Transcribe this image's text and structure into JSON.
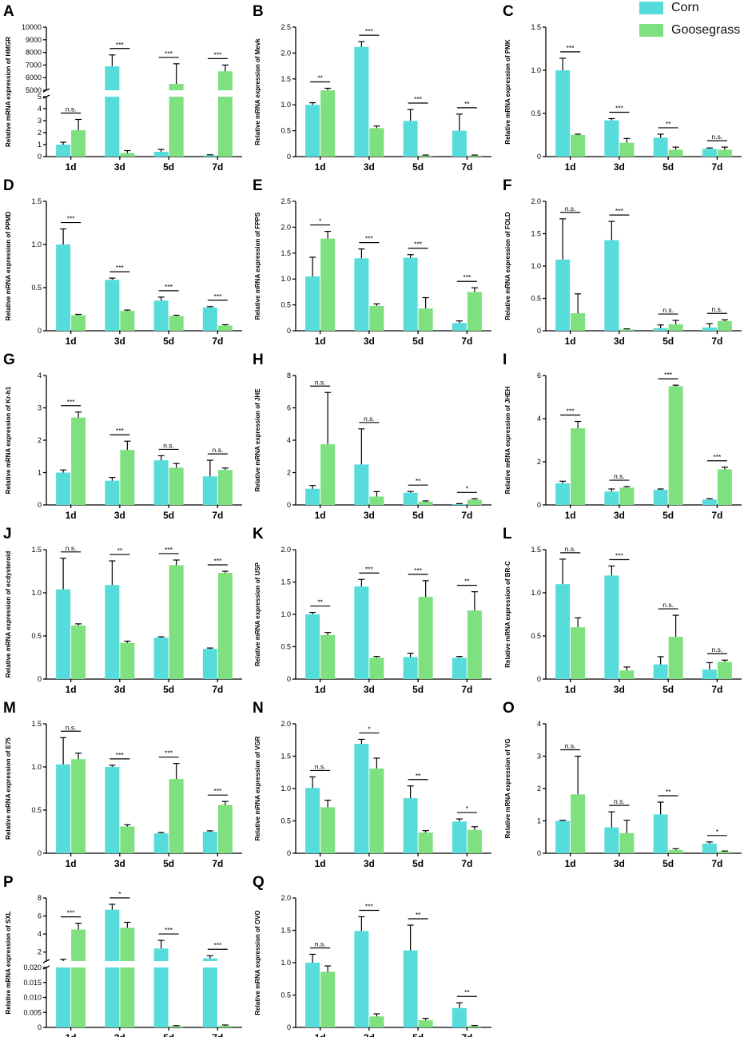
{
  "legend": {
    "corn_label": "Corn",
    "goosegrass_label": "Goosegrass",
    "corn_color": "#57dcdc",
    "goosegrass_color": "#7ee07e"
  },
  "chart_data": [
    {
      "panel": "A",
      "type": "bar",
      "ylabel": "Relative mRNA expression of HMGR",
      "categories": [
        "1d",
        "3d",
        "5d",
        "7d"
      ],
      "broken_axis": true,
      "lower_ticks": [
        "0",
        "1",
        "2",
        "3",
        "4",
        "5"
      ],
      "upper_ticks": [
        "5000",
        "6000",
        "7000",
        "8000",
        "9000",
        "10000"
      ],
      "lower_range": [
        0,
        5
      ],
      "upper_range": [
        5000,
        10000
      ],
      "series": [
        {
          "name": "Corn",
          "values": [
            1.0,
            6900,
            0.4,
            0.1
          ],
          "errors": [
            0.2,
            900,
            0.2,
            0.05
          ]
        },
        {
          "name": "Goosegrass",
          "values": [
            2.2,
            0.3,
            5500,
            6500
          ],
          "errors": [
            0.9,
            0.2,
            1600,
            500
          ]
        }
      ],
      "significance": [
        "n.s.",
        "***",
        "***",
        "***"
      ]
    },
    {
      "panel": "B",
      "type": "bar",
      "ylabel": "Relative mRNA expression of Mevk",
      "categories": [
        "1d",
        "3d",
        "5d",
        "7d"
      ],
      "ylim": [
        0,
        2.5
      ],
      "ticks": [
        "0",
        "0.5",
        "1.0",
        "1.5",
        "2.0",
        "2.5"
      ],
      "series": [
        {
          "name": "Corn",
          "values": [
            1.0,
            2.12,
            0.69,
            0.5
          ],
          "errors": [
            0.04,
            0.1,
            0.22,
            0.32
          ]
        },
        {
          "name": "Goosegrass",
          "values": [
            1.28,
            0.55,
            0.02,
            0.02
          ],
          "errors": [
            0.04,
            0.04,
            0.01,
            0.01
          ]
        }
      ],
      "significance": [
        "**",
        "***",
        "***",
        "**"
      ]
    },
    {
      "panel": "C",
      "type": "bar",
      "ylabel": "Relative mRNA expression of PMK",
      "categories": [
        "1d",
        "3d",
        "5d",
        "7d"
      ],
      "ylim": [
        0,
        1.5
      ],
      "ticks": [
        "0",
        "0.5",
        "1.0",
        "1.5"
      ],
      "series": [
        {
          "name": "Corn",
          "values": [
            1.0,
            0.42,
            0.22,
            0.09
          ],
          "errors": [
            0.14,
            0.02,
            0.04,
            0.01
          ]
        },
        {
          "name": "Goosegrass",
          "values": [
            0.25,
            0.16,
            0.08,
            0.08
          ],
          "errors": [
            0.01,
            0.05,
            0.03,
            0.03
          ]
        }
      ],
      "significance": [
        "***",
        "***",
        "**",
        "n.s."
      ]
    },
    {
      "panel": "D",
      "type": "bar",
      "ylabel": "Relative mRNA expression of PPMD",
      "categories": [
        "1d",
        "3d",
        "5d",
        "7d"
      ],
      "ylim": [
        0,
        1.5
      ],
      "ticks": [
        "0",
        "0.5",
        "1.0",
        "1.5"
      ],
      "series": [
        {
          "name": "Corn",
          "values": [
            1.0,
            0.59,
            0.35,
            0.27
          ],
          "errors": [
            0.18,
            0.02,
            0.04,
            0.01
          ]
        },
        {
          "name": "Goosegrass",
          "values": [
            0.18,
            0.23,
            0.17,
            0.06
          ],
          "errors": [
            0.01,
            0.01,
            0.01,
            0.01
          ]
        }
      ],
      "significance": [
        "***",
        "***",
        "***",
        "***"
      ]
    },
    {
      "panel": "E",
      "type": "bar",
      "ylabel": "Relative mRNA expression of FPPS",
      "categories": [
        "1d",
        "3d",
        "5d",
        "7d"
      ],
      "ylim": [
        0,
        2.5
      ],
      "ticks": [
        "0",
        "0.5",
        "1.0",
        "1.5",
        "2.0",
        "2.5"
      ],
      "series": [
        {
          "name": "Corn",
          "values": [
            1.05,
            1.4,
            1.41,
            0.15
          ],
          "errors": [
            0.37,
            0.18,
            0.06,
            0.04
          ]
        },
        {
          "name": "Goosegrass",
          "values": [
            1.78,
            0.48,
            0.43,
            0.75
          ],
          "errors": [
            0.14,
            0.04,
            0.21,
            0.08
          ]
        }
      ],
      "significance": [
        "*",
        "***",
        "***",
        "***"
      ]
    },
    {
      "panel": "F",
      "type": "bar",
      "ylabel": "Relative mRNA expression of FOLD",
      "categories": [
        "1d",
        "3d",
        "5d",
        "7d"
      ],
      "ylim": [
        0,
        2.0
      ],
      "ticks": [
        "0",
        "0.5",
        "1.0",
        "1.5",
        "2.0"
      ],
      "series": [
        {
          "name": "Corn",
          "values": [
            1.1,
            1.4,
            0.04,
            0.05
          ],
          "errors": [
            0.63,
            0.29,
            0.05,
            0.06
          ]
        },
        {
          "name": "Goosegrass",
          "values": [
            0.27,
            0.02,
            0.1,
            0.15
          ],
          "errors": [
            0.3,
            0.01,
            0.06,
            0.02
          ]
        }
      ],
      "significance": [
        "n.s.",
        "***",
        "n.s.",
        "n.s."
      ]
    },
    {
      "panel": "G",
      "type": "bar",
      "ylabel": "Relative mRNA expression of Kr-h1",
      "categories": [
        "1d",
        "3d",
        "5d",
        "7d"
      ],
      "ylim": [
        0,
        4
      ],
      "ticks": [
        "0",
        "1",
        "2",
        "3",
        "4"
      ],
      "series": [
        {
          "name": "Corn",
          "values": [
            1.0,
            0.75,
            1.38,
            0.88
          ],
          "errors": [
            0.08,
            0.1,
            0.14,
            0.5
          ]
        },
        {
          "name": "Goosegrass",
          "values": [
            2.7,
            1.7,
            1.15,
            1.08
          ],
          "errors": [
            0.17,
            0.27,
            0.13,
            0.06
          ]
        }
      ],
      "significance": [
        "***",
        "***",
        "n.s.",
        "n.s."
      ]
    },
    {
      "panel": "H",
      "type": "bar",
      "ylabel": "Relative mRNA expression of JHE",
      "categories": [
        "1d",
        "3d",
        "5d",
        "7d"
      ],
      "ylim": [
        0,
        8
      ],
      "ticks": [
        "0",
        "2",
        "4",
        "6",
        "8"
      ],
      "series": [
        {
          "name": "Corn",
          "values": [
            1.0,
            2.5,
            0.75,
            0.05
          ],
          "errors": [
            0.2,
            2.2,
            0.08,
            0.03
          ]
        },
        {
          "name": "Goosegrass",
          "values": [
            3.75,
            0.52,
            0.2,
            0.32
          ],
          "errors": [
            3.2,
            0.3,
            0.05,
            0.06
          ]
        }
      ],
      "significance": [
        "n.s.",
        "n.s.",
        "**",
        "*"
      ]
    },
    {
      "panel": "I",
      "type": "bar",
      "ylabel": "Relative mRNA expression of JHEH",
      "categories": [
        "1d",
        "3d",
        "5d",
        "7d"
      ],
      "ylim": [
        0,
        6
      ],
      "ticks": [
        "0",
        "2",
        "4",
        "6"
      ],
      "series": [
        {
          "name": "Corn",
          "values": [
            1.0,
            0.62,
            0.7,
            0.25
          ],
          "errors": [
            0.1,
            0.12,
            0.04,
            0.04
          ]
        },
        {
          "name": "Goosegrass",
          "values": [
            3.55,
            0.8,
            5.5,
            1.65
          ],
          "errors": [
            0.32,
            0.05,
            0.05,
            0.1
          ]
        }
      ],
      "significance": [
        "***",
        "n.s.",
        "***",
        "***"
      ]
    },
    {
      "panel": "J",
      "type": "bar",
      "ylabel": "Relative mRNA expression of ecdysteroid",
      "categories": [
        "1d",
        "3d",
        "5d",
        "7d"
      ],
      "ylim": [
        0,
        1.5
      ],
      "ticks": [
        "0",
        "0.5",
        "1.0",
        "1.5"
      ],
      "series": [
        {
          "name": "Corn",
          "values": [
            1.04,
            1.09,
            0.48,
            0.35
          ],
          "errors": [
            0.36,
            0.28,
            0.01,
            0.01
          ]
        },
        {
          "name": "Goosegrass",
          "values": [
            0.62,
            0.42,
            1.32,
            1.23
          ],
          "errors": [
            0.02,
            0.02,
            0.06,
            0.02
          ]
        }
      ],
      "significance": [
        "n.s.",
        "**",
        "***",
        "***"
      ]
    },
    {
      "panel": "K",
      "type": "bar",
      "ylabel": "Relative mRNA expression of USP",
      "categories": [
        "1d",
        "3d",
        "5d",
        "7d"
      ],
      "ylim": [
        0,
        2.0
      ],
      "ticks": [
        "0",
        "0.5",
        "1.0",
        "1.5",
        "2.0"
      ],
      "series": [
        {
          "name": "Corn",
          "values": [
            1.0,
            1.43,
            0.34,
            0.33
          ],
          "errors": [
            0.03,
            0.11,
            0.06,
            0.02
          ]
        },
        {
          "name": "Goosegrass",
          "values": [
            0.68,
            0.33,
            1.27,
            1.06
          ],
          "errors": [
            0.04,
            0.02,
            0.25,
            0.29
          ]
        }
      ],
      "significance": [
        "**",
        "***",
        "***",
        "**"
      ]
    },
    {
      "panel": "L",
      "type": "bar",
      "ylabel": "Relative mRNA expression of BR-C",
      "categories": [
        "1d",
        "3d",
        "5d",
        "7d"
      ],
      "ylim": [
        0,
        1.5
      ],
      "ticks": [
        "0",
        "0.5",
        "1.0",
        "1.5"
      ],
      "series": [
        {
          "name": "Corn",
          "values": [
            1.1,
            1.2,
            0.17,
            0.11
          ],
          "errors": [
            0.29,
            0.11,
            0.09,
            0.08
          ]
        },
        {
          "name": "Goosegrass",
          "values": [
            0.6,
            0.1,
            0.49,
            0.2
          ],
          "errors": [
            0.11,
            0.04,
            0.25,
            0.02
          ]
        }
      ],
      "significance": [
        "n.s.",
        "***",
        "n.s.",
        "n.s."
      ]
    },
    {
      "panel": "M",
      "type": "bar",
      "ylabel": "Relative mRNA expression of E75",
      "categories": [
        "1d",
        "3d",
        "5d",
        "7d"
      ],
      "ylim": [
        0,
        1.5
      ],
      "ticks": [
        "0",
        "0.5",
        "1.0",
        "1.5"
      ],
      "series": [
        {
          "name": "Corn",
          "values": [
            1.03,
            1.0,
            0.23,
            0.25
          ],
          "errors": [
            0.31,
            0.02,
            0.01,
            0.01
          ]
        },
        {
          "name": "Goosegrass",
          "values": [
            1.09,
            0.31,
            0.86,
            0.56
          ],
          "errors": [
            0.07,
            0.02,
            0.18,
            0.04
          ]
        }
      ],
      "significance": [
        "n.s.",
        "***",
        "***",
        "***"
      ]
    },
    {
      "panel": "N",
      "type": "bar",
      "ylabel": "Relative mRNA expression of VGR",
      "categories": [
        "1d",
        "3d",
        "5d",
        "7d"
      ],
      "ylim": [
        0,
        2.0
      ],
      "ticks": [
        "0",
        "0.5",
        "1.0",
        "1.5",
        "2.0"
      ],
      "series": [
        {
          "name": "Corn",
          "values": [
            1.01,
            1.69,
            0.85,
            0.49
          ],
          "errors": [
            0.17,
            0.07,
            0.19,
            0.04
          ]
        },
        {
          "name": "Goosegrass",
          "values": [
            0.71,
            1.31,
            0.32,
            0.36
          ],
          "errors": [
            0.11,
            0.16,
            0.03,
            0.05
          ]
        }
      ],
      "significance": [
        "n.s.",
        "*",
        "**",
        "*"
      ]
    },
    {
      "panel": "O",
      "type": "bar",
      "ylabel": "Relative mRNA expression of VG",
      "categories": [
        "1d",
        "3d",
        "5d",
        "7d"
      ],
      "ylim": [
        0,
        4
      ],
      "ticks": [
        "0",
        "1",
        "2",
        "3",
        "4"
      ],
      "series": [
        {
          "name": "Corn",
          "values": [
            1.0,
            0.8,
            1.2,
            0.3
          ],
          "errors": [
            0.02,
            0.48,
            0.38,
            0.05
          ]
        },
        {
          "name": "Goosegrass",
          "values": [
            1.82,
            0.62,
            0.1,
            0.05
          ],
          "errors": [
            1.18,
            0.4,
            0.04,
            0.02
          ]
        }
      ],
      "significance": [
        "n.s.",
        "n.s.",
        "**",
        "*"
      ]
    },
    {
      "panel": "P",
      "type": "bar",
      "ylabel": "Relative mRNA expression of SXL",
      "categories": [
        "1d",
        "3d",
        "5d",
        "7d"
      ],
      "broken_axis": true,
      "lower_ticks": [
        "0",
        "0.005",
        "0.010",
        "0.015",
        "0.020"
      ],
      "upper_ticks": [
        "2",
        "4",
        "6",
        "8"
      ],
      "lower_range": [
        0,
        0.02
      ],
      "upper_range": [
        1,
        8
      ],
      "series": [
        {
          "name": "Corn",
          "values": [
            1.0,
            6.7,
            2.4,
            1.3
          ],
          "errors": [
            0.2,
            0.6,
            0.9,
            0.3
          ]
        },
        {
          "name": "Goosegrass",
          "values": [
            4.5,
            4.7,
            0.0004,
            0.0005
          ],
          "errors": [
            0.7,
            0.6,
            0.0002,
            0.0003
          ]
        }
      ],
      "significance": [
        "***",
        "*",
        "***",
        "***"
      ]
    },
    {
      "panel": "Q",
      "type": "bar",
      "ylabel": "Relative mRNA expression of OVO",
      "categories": [
        "1d",
        "3d",
        "5d",
        "7d"
      ],
      "ylim": [
        0,
        2.0
      ],
      "ticks": [
        "0",
        "0.5",
        "1.0",
        "1.5",
        "2.0"
      ],
      "series": [
        {
          "name": "Corn",
          "values": [
            1.0,
            1.49,
            1.19,
            0.3
          ],
          "errors": [
            0.13,
            0.22,
            0.39,
            0.08
          ]
        },
        {
          "name": "Goosegrass",
          "values": [
            0.86,
            0.17,
            0.11,
            0.02
          ],
          "errors": [
            0.09,
            0.04,
            0.03,
            0.01
          ]
        }
      ],
      "significance": [
        "n.s.",
        "***",
        "**",
        "**"
      ]
    }
  ]
}
